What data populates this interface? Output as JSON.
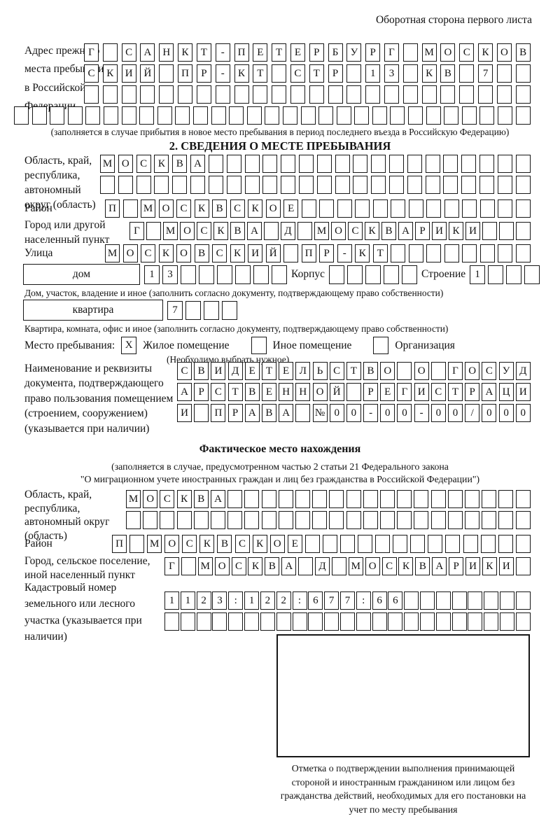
{
  "header_note": "Оборотная сторона первого листа",
  "prev_address": {
    "label": "Адрес прежнего места пребывания в Российской Федерации",
    "row1": "Г САНКТ-ПЕТЕРБУРГ МОСКОВ",
    "row2": "СКИЙ ПР-КТ СТР 13 КВ 7",
    "row3": "",
    "row4": "",
    "caption": "(заполняется в случае прибытия в новое место пребывания в период последнего въезда в Российскую Федерацию)"
  },
  "section2": {
    "title": "2. СВЕДЕНИЯ О МЕСТЕ ПРЕБЫВАНИЯ",
    "region": {
      "label": "Область, край, республика, автономный округ (область)",
      "row1": "МОСКВА",
      "row2": ""
    },
    "district": {
      "label": "Район",
      "row": "П МОСКВСКОЕ"
    },
    "city": {
      "label": "Город или другой населенный пункт",
      "row": "Г МОСКВА Д МОСКВАРИКИ"
    },
    "street": {
      "label": "Улица",
      "row": "МОСКОВСКИЙ ПР-КТ"
    },
    "house": {
      "box_label": "дом",
      "value": "13",
      "korpus_label": "Корпус",
      "korpus_value": "",
      "stroenie_label": "Строение",
      "stroenie_value": "1",
      "caption": "Дом, участок, владение и иное (заполнить согласно документу, подтверждающему право собственности)"
    },
    "apartment": {
      "box_label": "квартира",
      "value": "7",
      "caption": "Квартира, комната, офис и иное (заполнить согласно документу, подтверждающему право собственности)"
    },
    "place_type": {
      "label": "Место пребывания:",
      "options": [
        {
          "mark": "X",
          "label": "Жилое помещение"
        },
        {
          "mark": "",
          "label": "Иное помещение"
        },
        {
          "mark": "",
          "label": "Организация"
        }
      ],
      "hint": "(Необходимо выбрать нужное)"
    },
    "document": {
      "label": "Наименование и реквизиты документа, подтверждающего право пользования помещением (строением, сооружением) (указывается при наличии)",
      "row1": "СВИДЕТЕЛЬСТВО О ГОСУД",
      "row2": "АРСТВЕННОЙ РЕГИСТРАЦИ",
      "row3": "И ПРАВА №00-00-00/000"
    }
  },
  "actual": {
    "title": "Фактическое место нахождения",
    "caption1": "(заполняется в случае, предусмотренном частью 2 статьи 21 Федерального закона",
    "caption2": "\"О миграционном учете иностранных граждан и лиц без гражданства в Российской Федерации\")",
    "region": {
      "label": "Область, край, республика, автономный округ (область)",
      "row1": "МОСКВА",
      "row2": ""
    },
    "district": {
      "label": "Район",
      "row": "П МОСКВСКОЕ"
    },
    "city": {
      "label": "Город, сельское поселение, иной населенный пункт",
      "row": "Г МОСКВА Д МОСКВАРИКИ"
    },
    "cadastral": {
      "label": "Кадастровый номер земельного или лесного участка (указывается при наличии)",
      "row1": "1123:122:677:66",
      "row2": ""
    },
    "stamp_caption": "Отметка о подтверждении выполнения принимающей стороной и иностранным гражданином или лицом без гражданства действий, необходимых для его постановки на учет по месту пребывания"
  }
}
